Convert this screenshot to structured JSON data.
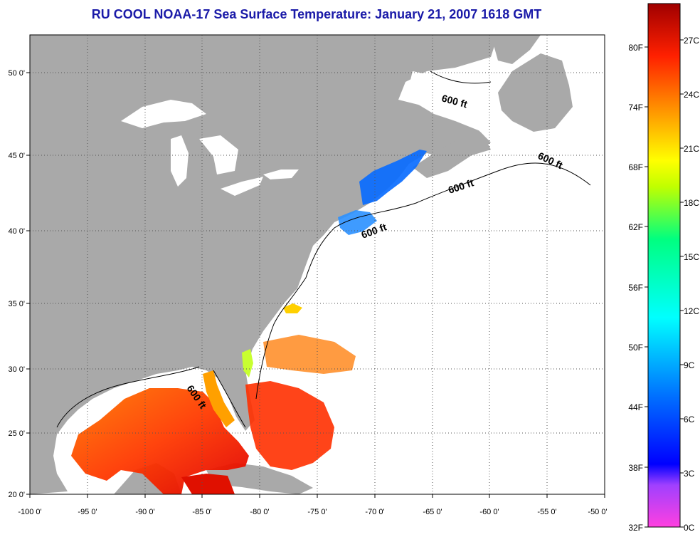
{
  "title": "RU COOL  NOAA-17  Sea Surface Temperature:  January 21, 2007 1618 GMT",
  "map": {
    "lon_range": [
      -100,
      -50
    ],
    "lat_range": [
      20,
      52
    ],
    "lon_ticks": [
      "-100 0'",
      "-95 0'",
      "-90 0'",
      "-85 0'",
      "-80 0'",
      "-75 0'",
      "-70 0'",
      "-65 0'",
      "-60 0'",
      "-55 0'",
      "-50 0'"
    ],
    "lat_ticks": [
      "20 0'",
      "25 0'",
      "30 0'",
      "35 0'",
      "40 0'",
      "45 0'",
      "50 0'"
    ],
    "grid": "dotted",
    "land_color": "#a9a9a9",
    "water_color": "#ffffff",
    "depth_labels": [
      "600 ft",
      "600 ft",
      "600 ft",
      "600 ft",
      "600 ft"
    ]
  },
  "colorbar": {
    "fahrenheit_labels": [
      "32F",
      "38F",
      "44F",
      "50F",
      "56F",
      "62F",
      "68F",
      "74F",
      "80F"
    ],
    "celsius_labels": [
      "0C",
      "3C",
      "6C",
      "9C",
      "12C",
      "15C",
      "18C",
      "21C",
      "24C",
      "27C"
    ],
    "colors": [
      "#ff00c0",
      "#8000ff",
      "#0000ff",
      "#0080ff",
      "#00ffff",
      "#00ff80",
      "#c0ff00",
      "#ffff00",
      "#ffa000",
      "#ff4000",
      "#e00000",
      "#800000"
    ]
  }
}
